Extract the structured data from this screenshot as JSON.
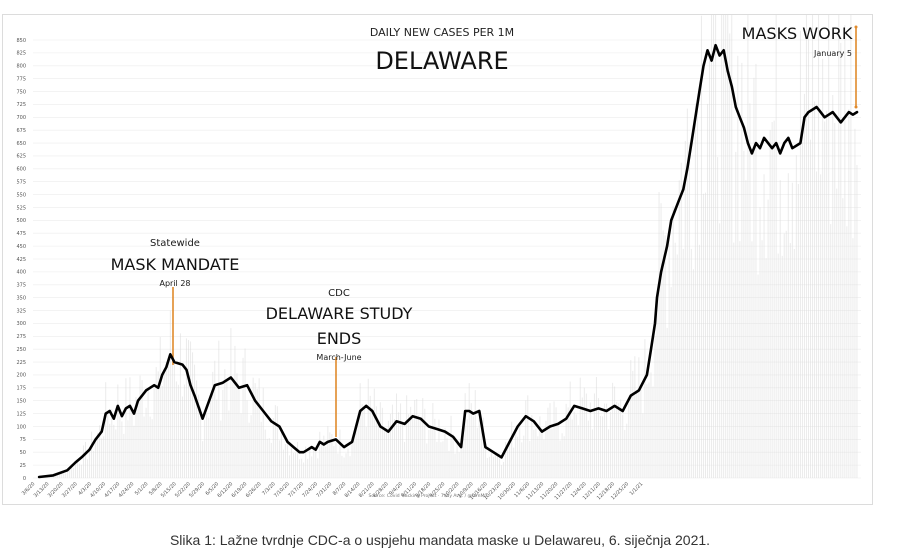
{
  "caption": "Slika 1: Lažne tvrdnje CDC-a o uspjehu mandata maske u Delawareu, 6. siječnja 2021.",
  "chart_data": {
    "type": "line",
    "title": "DELAWARE",
    "subtitle": "DAILY NEW CASES PER 1M",
    "source": "Source: Covid Tracking Project · 7day Avg. / @iamMC",
    "ylim": [
      0,
      850
    ],
    "yticks": [
      0,
      25,
      50,
      75,
      100,
      125,
      150,
      175,
      200,
      225,
      250,
      275,
      300,
      325,
      350,
      375,
      400,
      425,
      450,
      475,
      500,
      525,
      550,
      575,
      600,
      625,
      650,
      675,
      700,
      725,
      750,
      775,
      800,
      825,
      850
    ],
    "xticks": [
      "3/6/20",
      "3/13/20",
      "3/20/20",
      "3/27/20",
      "4/3/20",
      "4/10/20",
      "4/17/20",
      "4/24/20",
      "5/1/20",
      "5/8/20",
      "5/15/20",
      "5/22/20",
      "5/29/20",
      "6/5/20",
      "6/12/20",
      "6/19/20",
      "6/26/20",
      "7/3/20",
      "7/10/20",
      "7/17/20",
      "7/24/20",
      "7/31/20",
      "8/7/20",
      "8/14/20",
      "8/21/20",
      "8/28/20",
      "9/4/20",
      "9/11/20",
      "9/18/20",
      "9/25/20",
      "10/2/20",
      "10/9/20",
      "10/16/20",
      "10/23/20",
      "10/30/20",
      "11/6/20",
      "11/13/20",
      "11/20/20",
      "11/27/20",
      "12/4/20",
      "12/11/20",
      "12/18/20",
      "12/25/20",
      "1/1/21"
    ],
    "x": [
      3,
      10,
      17,
      21,
      24,
      28,
      31,
      34,
      36,
      38,
      40,
      42,
      44,
      46,
      48,
      50,
      52,
      54,
      56,
      58,
      60,
      62,
      64,
      66,
      68,
      70,
      74,
      76,
      78,
      80,
      84,
      90,
      94,
      98,
      102,
      106,
      110,
      114,
      118,
      122,
      126,
      129,
      132,
      134,
      136,
      138,
      140,
      142,
      144,
      146,
      150,
      154,
      158,
      162,
      165,
      168,
      172,
      176,
      180,
      184,
      188,
      192,
      196,
      200,
      204,
      208,
      212,
      214,
      216,
      218,
      221,
      224,
      228,
      232,
      236,
      240,
      244,
      248,
      252,
      256,
      260,
      264,
      268,
      272,
      276,
      280,
      284,
      288,
      292,
      296,
      300,
      304,
      306,
      308,
      309,
      311,
      314,
      316,
      318,
      320,
      322,
      324,
      326,
      328,
      330,
      332,
      334,
      336,
      338,
      340,
      342,
      344,
      346,
      348,
      350,
      352,
      354,
      356,
      358,
      360,
      362,
      364,
      366,
      368,
      370,
      372,
      374,
      376,
      378,
      380,
      382,
      384,
      386,
      388,
      390,
      392,
      394,
      396,
      398,
      400,
      402,
      404,
      406,
      408
    ],
    "values": [
      2,
      5,
      15,
      30,
      40,
      55,
      75,
      90,
      125,
      130,
      115,
      140,
      120,
      135,
      140,
      125,
      150,
      160,
      170,
      175,
      180,
      175,
      200,
      215,
      240,
      225,
      220,
      210,
      180,
      160,
      115,
      180,
      185,
      195,
      175,
      180,
      150,
      130,
      110,
      100,
      70,
      60,
      50,
      50,
      55,
      60,
      55,
      70,
      65,
      70,
      75,
      60,
      70,
      130,
      140,
      130,
      100,
      90,
      110,
      105,
      120,
      115,
      100,
      95,
      90,
      80,
      60,
      130,
      130,
      125,
      130,
      60,
      50,
      40,
      70,
      100,
      120,
      110,
      90,
      100,
      105,
      115,
      140,
      135,
      130,
      135,
      130,
      140,
      130,
      160,
      170,
      200,
      250,
      300,
      350,
      400,
      450,
      500,
      520,
      540,
      560,
      600,
      650,
      700,
      750,
      800,
      830,
      810,
      840,
      820,
      830,
      790,
      760,
      720,
      700,
      680,
      650,
      630,
      650,
      640,
      660,
      650,
      640,
      650,
      630,
      650,
      660,
      640,
      645,
      650,
      700,
      710,
      715,
      720,
      710,
      700,
      705,
      710,
      700,
      690,
      700,
      710,
      705,
      710
    ]
  },
  "annotations": {
    "statewide": "Statewide",
    "mask_mandate": "MASK MANDATE",
    "april28": "April 28",
    "cdc": "CDC",
    "study_line1": "DELAWARE STUDY",
    "study_line2": "ENDS",
    "march_june": "March-June",
    "masks_work": "MASKS WORK",
    "january5": "January 5"
  },
  "colors": {
    "line": "#000000",
    "marker": "#e08a2c",
    "grid": "#ececec",
    "bars": "#dadada"
  }
}
